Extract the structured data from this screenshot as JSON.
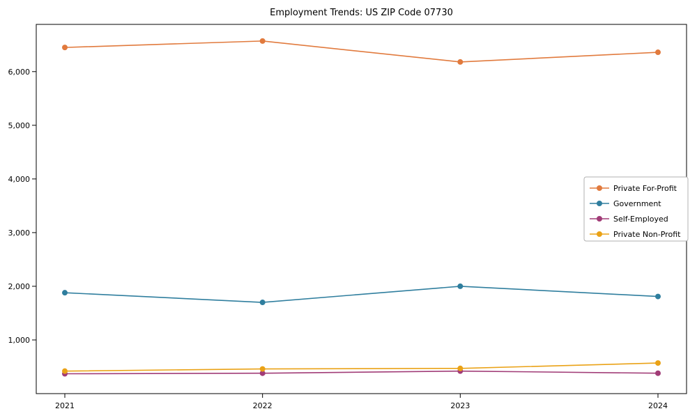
{
  "chart_data": {
    "type": "line",
    "title": "Employment Trends: US ZIP Code 07730",
    "xlabel": "",
    "ylabel": "",
    "categories": [
      "2021",
      "2022",
      "2023",
      "2024"
    ],
    "series": [
      {
        "name": "Private For-Profit",
        "color": "#e17a3d",
        "values": [
          6450,
          6570,
          6180,
          6360
        ]
      },
      {
        "name": "Government",
        "color": "#2f7e9e",
        "values": [
          1880,
          1700,
          2000,
          1810
        ]
      },
      {
        "name": "Self-Employed",
        "color": "#a13c77",
        "values": [
          370,
          380,
          420,
          380
        ]
      },
      {
        "name": "Private Non-Profit",
        "color": "#eaa216",
        "values": [
          420,
          460,
          470,
          570
        ]
      }
    ],
    "ylim": [
      0,
      6880
    ],
    "yticks": [
      1000,
      2000,
      3000,
      4000,
      5000,
      6000
    ],
    "ytick_labels": [
      "1,000",
      "2,000",
      "3,000",
      "4,000",
      "5,000",
      "6,000"
    ],
    "grid": false,
    "marker": "circle",
    "legend_position": "center-right"
  }
}
